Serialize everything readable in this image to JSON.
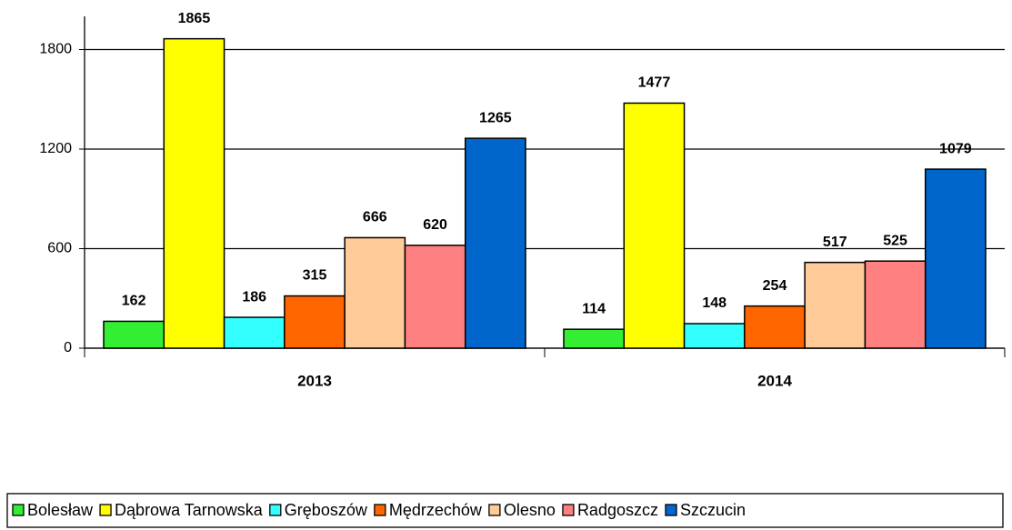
{
  "chart_data": {
    "type": "bar",
    "categories": [
      "2013",
      "2014"
    ],
    "series": [
      {
        "name": "Bolesław",
        "color": "#33ee33",
        "values": [
          162,
          114
        ]
      },
      {
        "name": "Dąbrowa Tarnowska",
        "color": "#ffff00",
        "values": [
          1865,
          1477
        ]
      },
      {
        "name": "Gręboszów",
        "color": "#33ffff",
        "values": [
          186,
          148
        ]
      },
      {
        "name": "Mędrzechów",
        "color": "#ff6600",
        "values": [
          315,
          254
        ]
      },
      {
        "name": "Olesno",
        "color": "#ffcc99",
        "values": [
          666,
          517
        ]
      },
      {
        "name": "Radgoszcz",
        "color": "#ff8080",
        "values": [
          620,
          525
        ]
      },
      {
        "name": "Szczucin",
        "color": "#0066cc",
        "values": [
          1265,
          1079
        ]
      }
    ],
    "ylim": [
      0,
      2000
    ],
    "yticks": [
      0,
      600,
      1200,
      1800
    ],
    "grid": true,
    "legend": "bottom"
  }
}
